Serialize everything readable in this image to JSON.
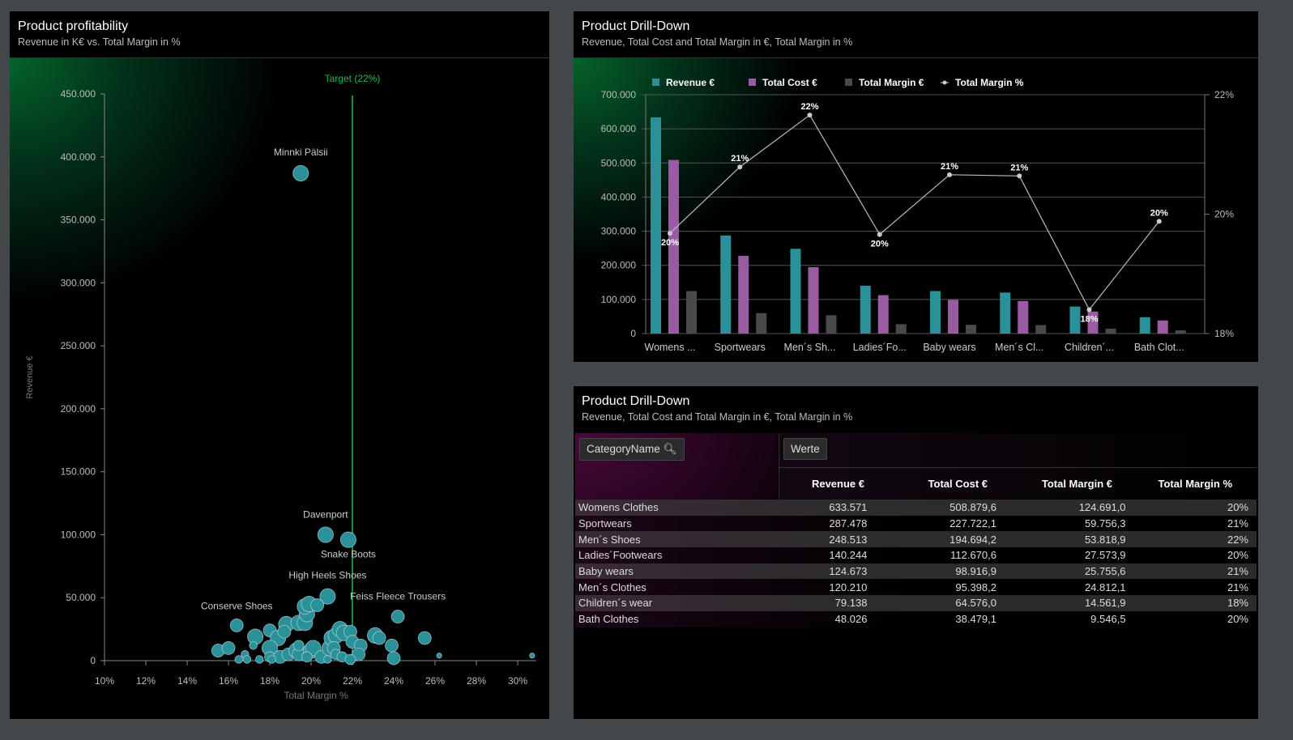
{
  "scatter_panel": {
    "title": "Product profitability",
    "subtitle": "Revenue in K€ vs. Total Margin in %"
  },
  "bar_panel": {
    "title": "Product Drill-Down",
    "subtitle": "Revenue, Total Cost and Total Margin in €, Total Margin in %"
  },
  "table_panel": {
    "title": "Product Drill-Down",
    "subtitle": "Revenue, Total Cost and Total Margin in €, Total Margin in %",
    "row_field": "CategoryName",
    "values_field": "Werte",
    "columns": [
      "Revenue €",
      "Total Cost €",
      "Total Margin €",
      "Total Margin %"
    ],
    "rows": [
      [
        "Womens Clothes",
        "633.571",
        "508.879,6",
        "124.691,0",
        "20%"
      ],
      [
        "Sportwears",
        "287.478",
        "227.722,1",
        "59.756,3",
        "21%"
      ],
      [
        "Men´s Shoes",
        "248.513",
        "194.694,2",
        "53.818,9",
        "22%"
      ],
      [
        "Ladies´Footwears",
        "140.244",
        "112.670,6",
        "27.573,9",
        "20%"
      ],
      [
        "Baby wears",
        "124.673",
        "98.916,9",
        "25.755,6",
        "21%"
      ],
      [
        "Men´s Clothes",
        "120.210",
        "95.398,2",
        "24.812,1",
        "21%"
      ],
      [
        "Children´s wear",
        "79.138",
        "64.576,0",
        "14.561,9",
        "18%"
      ],
      [
        "Bath Clothes",
        "48.026",
        "38.479,1",
        "9.546,5",
        "20%"
      ]
    ]
  },
  "colors": {
    "revenue": "#2a9199",
    "cost": "#9a5ba3",
    "margin": "#4a4a4a",
    "line": "#bbbbbb",
    "target": "#1db954",
    "bubble": "#2a9199"
  },
  "chart_data": [
    {
      "type": "scatter",
      "xlabel": "Total Margin %",
      "ylabel": "Revenue €",
      "xlim": [
        10,
        31
      ],
      "ylim": [
        0,
        450000
      ],
      "x_ticks": [
        "10%",
        "12%",
        "14%",
        "16%",
        "18%",
        "20%",
        "22%",
        "24%",
        "26%",
        "28%",
        "30%"
      ],
      "y_ticks": [
        "0",
        "50.000",
        "100.000",
        "150.000",
        "200.000",
        "250.000",
        "300.000",
        "350.000",
        "400.000",
        "450.000"
      ],
      "target": {
        "label": "Target (22%)",
        "x": 22
      },
      "points": [
        {
          "label": "Minnki Pälsii",
          "x": 19.5,
          "y": 387000,
          "size": 3
        },
        {
          "label": "Davenport",
          "x": 20.7,
          "y": 100000,
          "size": 3
        },
        {
          "label": "Snake Boots",
          "x": 21.8,
          "y": 96000,
          "size": 3
        },
        {
          "label": "High Heels Shoes",
          "x": 20.8,
          "y": 51000,
          "size": 3
        },
        {
          "label": "Conserve Shoes",
          "x": 16.4,
          "y": 28000,
          "size": 2.5
        },
        {
          "label": "Feiss Fleece Trousers",
          "x": 24.2,
          "y": 35000,
          "size": 2.5
        },
        {
          "x": 15.5,
          "y": 8000,
          "size": 2.5
        },
        {
          "x": 16.0,
          "y": 10000,
          "size": 2.5
        },
        {
          "x": 17.3,
          "y": 19000,
          "size": 3
        },
        {
          "x": 18.0,
          "y": 24000,
          "size": 2.5
        },
        {
          "x": 18.4,
          "y": 18000,
          "size": 3
        },
        {
          "x": 18.8,
          "y": 29000,
          "size": 3
        },
        {
          "x": 18.7,
          "y": 23000,
          "size": 2.5
        },
        {
          "x": 19.4,
          "y": 30000,
          "size": 3
        },
        {
          "x": 19.7,
          "y": 30000,
          "size": 3
        },
        {
          "x": 19.8,
          "y": 37000,
          "size": 3
        },
        {
          "x": 19.7,
          "y": 43000,
          "size": 3
        },
        {
          "x": 19.9,
          "y": 45000,
          "size": 3
        },
        {
          "x": 20.3,
          "y": 44000,
          "size": 2.5
        },
        {
          "x": 17.2,
          "y": 12000,
          "size": 1.5
        },
        {
          "x": 16.8,
          "y": 5000,
          "size": 1.5
        },
        {
          "x": 16.9,
          "y": 1000,
          "size": 1.5
        },
        {
          "x": 16.5,
          "y": 1000,
          "size": 1.5
        },
        {
          "x": 17.5,
          "y": 1000,
          "size": 1.5
        },
        {
          "x": 18.0,
          "y": 10000,
          "size": 3
        },
        {
          "x": 18.0,
          "y": 3000,
          "size": 2
        },
        {
          "x": 18.5,
          "y": 3000,
          "size": 2.5
        },
        {
          "x": 18.9,
          "y": 5000,
          "size": 2.5
        },
        {
          "x": 19.3,
          "y": 8000,
          "size": 3
        },
        {
          "x": 19.4,
          "y": 5000,
          "size": 2.5
        },
        {
          "x": 19.4,
          "y": 12000,
          "size": 2
        },
        {
          "x": 20.0,
          "y": 8000,
          "size": 3
        },
        {
          "x": 20.1,
          "y": 10000,
          "size": 3
        },
        {
          "x": 20.5,
          "y": 3000,
          "size": 2.5
        },
        {
          "x": 20.9,
          "y": 10000,
          "size": 3
        },
        {
          "x": 21.0,
          "y": 18000,
          "size": 3
        },
        {
          "x": 21.2,
          "y": 20000,
          "size": 3
        },
        {
          "x": 21.4,
          "y": 25000,
          "size": 3
        },
        {
          "x": 21.6,
          "y": 22000,
          "size": 3
        },
        {
          "x": 21.9,
          "y": 23000,
          "size": 2.5
        },
        {
          "x": 22.0,
          "y": 15000,
          "size": 2.5
        },
        {
          "x": 21.1,
          "y": 10000,
          "size": 2.5
        },
        {
          "x": 21.2,
          "y": 5000,
          "size": 2
        },
        {
          "x": 21.5,
          "y": 3000,
          "size": 2
        },
        {
          "x": 22.4,
          "y": 12000,
          "size": 2.5
        },
        {
          "x": 22.3,
          "y": 5000,
          "size": 2.5
        },
        {
          "x": 21.9,
          "y": 1000,
          "size": 2
        },
        {
          "x": 20.8,
          "y": 1000,
          "size": 1.5
        },
        {
          "x": 23.1,
          "y": 20000,
          "size": 3
        },
        {
          "x": 23.3,
          "y": 18000,
          "size": 2.5
        },
        {
          "x": 23.9,
          "y": 12000,
          "size": 2.5
        },
        {
          "x": 24.0,
          "y": 2000,
          "size": 2.5
        },
        {
          "x": 25.5,
          "y": 18000,
          "size": 2.5
        },
        {
          "x": 26.2,
          "y": 4000,
          "size": 1
        },
        {
          "x": 30.7,
          "y": 4000,
          "size": 1
        },
        {
          "x": 19.8,
          "y": 3000,
          "size": 2
        },
        {
          "x": 18.1,
          "y": 1000,
          "size": 1.5
        }
      ]
    },
    {
      "type": "bar",
      "categories": [
        "Womens ...",
        "Sportwears",
        "Men´s Sh...",
        "Ladies´Fo...",
        "Baby wears",
        "Men´s Cl...",
        "Children´...",
        "Bath Clot..."
      ],
      "ylim": [
        0,
        700000
      ],
      "y2lim": [
        18,
        22
      ],
      "y_ticks": [
        "0",
        "100.000",
        "200.000",
        "300.000",
        "400.000",
        "500.000",
        "600.000",
        "700.000"
      ],
      "y2_ticks": [
        "18%",
        "20%",
        "22%"
      ],
      "series": [
        {
          "name": "Revenue €",
          "values": [
            633571,
            287478,
            248513,
            140244,
            124673,
            120210,
            79138,
            48026
          ]
        },
        {
          "name": "Total Cost €",
          "values": [
            508879.6,
            227722.1,
            194694.2,
            112670.6,
            98916.9,
            95398.2,
            64576.0,
            38479.1
          ]
        },
        {
          "name": "Total Margin €",
          "values": [
            124691.0,
            59756.3,
            53818.9,
            27573.9,
            25755.6,
            24812.1,
            14561.9,
            9546.5
          ]
        },
        {
          "name": "Total Margin %",
          "type": "line",
          "values": [
            19.68,
            20.79,
            21.66,
            19.66,
            20.66,
            20.64,
            18.4,
            19.88
          ],
          "labels": [
            "20%",
            "21%",
            "22%",
            "20%",
            "21%",
            "21%",
            "18%",
            "20%"
          ]
        }
      ],
      "legend": "top-left",
      "grid": true
    }
  ]
}
